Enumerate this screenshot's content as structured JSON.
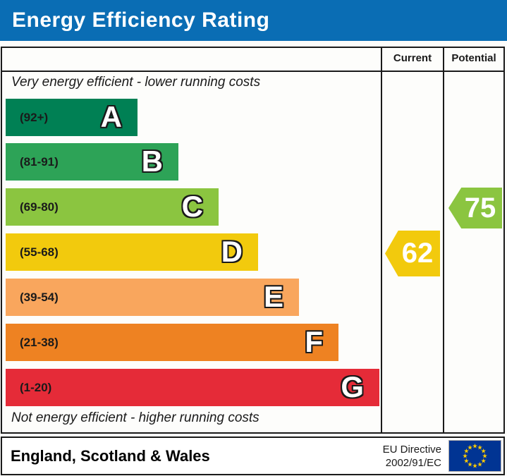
{
  "title_bar": {
    "title": "Energy Efficiency Rating"
  },
  "header": {
    "current_label": "Current",
    "potential_label": "Potential"
  },
  "captions": {
    "top": "Very energy efficient - lower running costs",
    "bottom": "Not energy efficient - higher running costs"
  },
  "chart_data": {
    "type": "bar",
    "title": "Energy Efficiency Rating",
    "bands": [
      {
        "letter": "A",
        "range": "(92+)",
        "min": 92,
        "max": 100,
        "color": "#008054",
        "width_px": "187px"
      },
      {
        "letter": "B",
        "range": "(81-91)",
        "min": 81,
        "max": 91,
        "color": "#2da357",
        "width_px": "245px"
      },
      {
        "letter": "C",
        "range": "(69-80)",
        "min": 69,
        "max": 80,
        "color": "#8bc540",
        "width_px": "302px"
      },
      {
        "letter": "D",
        "range": "(55-68)",
        "min": 55,
        "max": 68,
        "color": "#f2ca0d",
        "width_px": "358px"
      },
      {
        "letter": "E",
        "range": "(39-54)",
        "min": 39,
        "max": 54,
        "color": "#f9a65d",
        "width_px": "416px"
      },
      {
        "letter": "F",
        "range": "(21-38)",
        "min": 21,
        "max": 38,
        "color": "#ee8222",
        "width_px": "472px"
      },
      {
        "letter": "G",
        "range": "(1-20)",
        "min": 1,
        "max": 20,
        "color": "#e52b38",
        "width_px": "530px"
      }
    ],
    "current": {
      "label": "Current",
      "value": "62",
      "band": "D",
      "color": "#f2ca0d"
    },
    "potential": {
      "label": "Potential",
      "value": "75",
      "band": "C",
      "color": "#8bc540"
    }
  },
  "footer": {
    "region": "England, Scotland & Wales",
    "directive_line1": "EU Directive",
    "directive_line2": "2002/91/EC"
  },
  "colors": {
    "title_bg": "#0a6db4",
    "border": "#1a1a1a",
    "eu_flag_bg": "#013493",
    "eu_star": "#ffcc00"
  }
}
